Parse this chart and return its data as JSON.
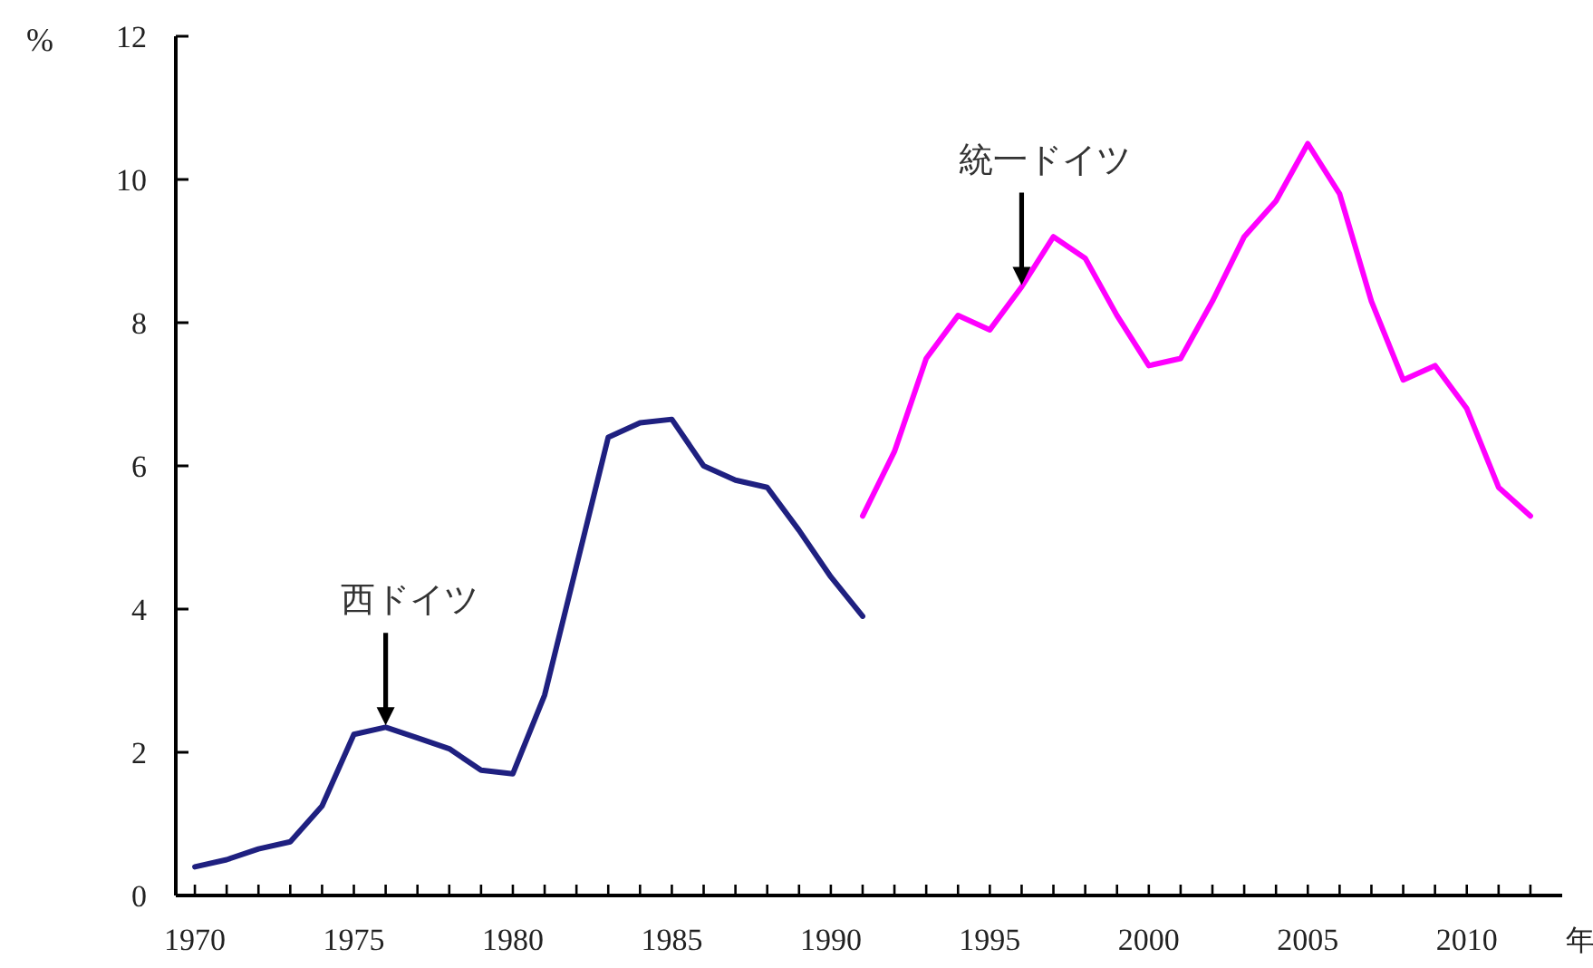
{
  "chart_data": {
    "type": "line",
    "xlabel": "年",
    "ylabel": "%",
    "x": [
      1970,
      1971,
      1972,
      1973,
      1974,
      1975,
      1976,
      1977,
      1978,
      1979,
      1980,
      1981,
      1982,
      1983,
      1984,
      1985,
      1986,
      1987,
      1988,
      1989,
      1990,
      1991,
      1992,
      1993,
      1994,
      1995,
      1996,
      1997,
      1998,
      1999,
      2000,
      2001,
      2002,
      2003,
      2004,
      2005,
      2006,
      2007,
      2008,
      2009,
      2010,
      2011,
      2012
    ],
    "series": [
      {
        "name": "西ドイツ",
        "color": "#1f2080",
        "values": [
          0.4,
          0.5,
          0.65,
          0.75,
          1.25,
          2.25,
          2.35,
          2.2,
          2.05,
          1.75,
          1.7,
          2.8,
          4.6,
          6.4,
          6.6,
          6.65,
          6.0,
          5.8,
          5.7,
          5.1,
          4.45,
          3.9,
          null,
          null,
          null,
          null,
          null,
          null,
          null,
          null,
          null,
          null,
          null,
          null,
          null,
          null,
          null,
          null,
          null,
          null,
          null,
          null,
          null
        ]
      },
      {
        "name": "統一ドイツ",
        "color": "#ff00ff",
        "values": [
          null,
          null,
          null,
          null,
          null,
          null,
          null,
          null,
          null,
          null,
          null,
          null,
          null,
          null,
          null,
          null,
          null,
          null,
          null,
          null,
          null,
          5.3,
          6.2,
          7.5,
          8.1,
          7.9,
          8.5,
          9.2,
          8.9,
          8.1,
          7.4,
          7.5,
          8.3,
          9.2,
          9.7,
          10.5,
          9.8,
          8.3,
          7.2,
          7.4,
          6.8,
          5.7,
          5.3
        ]
      }
    ],
    "xlim": [
      1969.4,
      2013
    ],
    "xticks": [
      1970,
      {
        "value": 1971,
        "label": null
      },
      {
        "value": 1972,
        "label": null
      },
      {
        "value": 1973,
        "label": null
      },
      {
        "value": 1974,
        "label": null
      },
      1975,
      {
        "value": 1976,
        "label": null
      },
      {
        "value": 1977,
        "label": null
      },
      {
        "value": 1978,
        "label": null
      },
      {
        "value": 1979,
        "label": null
      },
      1980,
      {
        "value": 1981,
        "label": null
      },
      {
        "value": 1982,
        "label": null
      },
      {
        "value": 1983,
        "label": null
      },
      {
        "value": 1984,
        "label": null
      },
      1985,
      {
        "value": 1986,
        "label": null
      },
      {
        "value": 1987,
        "label": null
      },
      {
        "value": 1988,
        "label": null
      },
      {
        "value": 1989,
        "label": null
      },
      1990,
      {
        "value": 1991,
        "label": null
      },
      {
        "value": 1992,
        "label": null
      },
      {
        "value": 1993,
        "label": null
      },
      {
        "value": 1994,
        "label": null
      },
      1995,
      {
        "value": 1996,
        "label": null
      },
      {
        "value": 1997,
        "label": null
      },
      {
        "value": 1998,
        "label": null
      },
      {
        "value": 1999,
        "label": null
      },
      2000,
      {
        "value": 2001,
        "label": null
      },
      {
        "value": 2002,
        "label": null
      },
      {
        "value": 2003,
        "label": null
      },
      {
        "value": 2004,
        "label": null
      },
      2005,
      {
        "value": 2006,
        "label": null
      },
      {
        "value": 2007,
        "label": null
      },
      {
        "value": 2008,
        "label": null
      },
      {
        "value": 2009,
        "label": null
      },
      2010,
      {
        "value": 2011,
        "label": null
      },
      {
        "value": 2012,
        "label": null
      }
    ],
    "ylim": [
      0,
      12
    ],
    "yticks": [
      0,
      2,
      4,
      6,
      8,
      10,
      12
    ],
    "grid": false,
    "legend": false,
    "marker": "none",
    "line_style": "solid"
  }
}
